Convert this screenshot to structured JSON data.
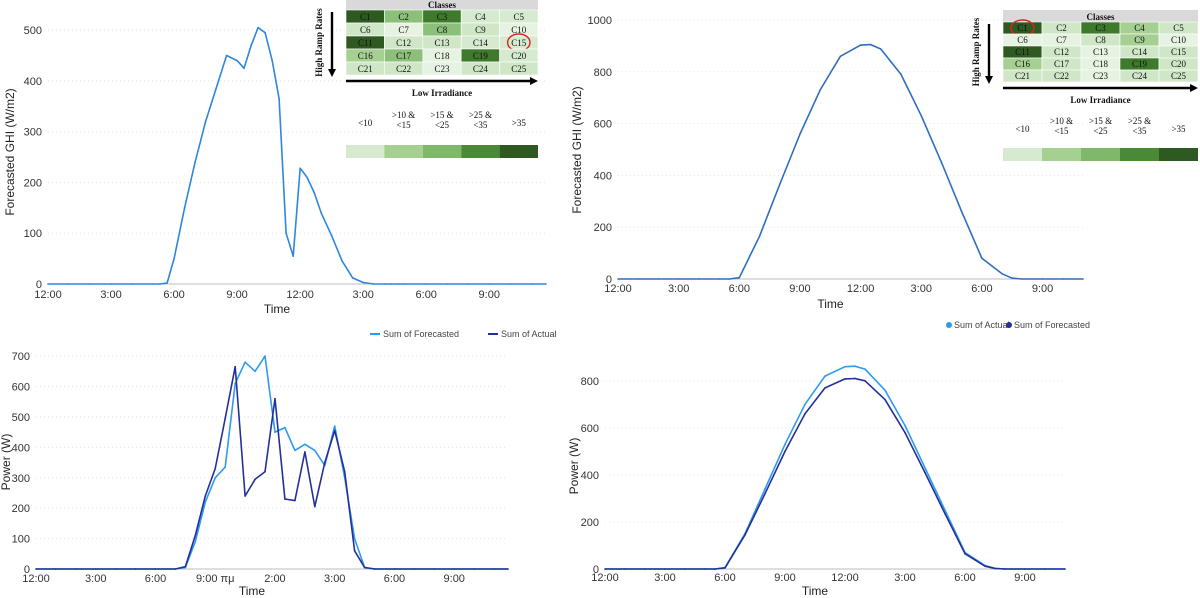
{
  "chart_data": [
    {
      "type": "line",
      "ylabel": "Forecasted GHI (W/m2)",
      "xlabel": "Time",
      "x_ticks": [
        "12:00",
        "3:00",
        "6:00",
        "9:00",
        "12:00",
        "3:00",
        "6:00",
        "9:00"
      ],
      "y_ticks": [
        0,
        100,
        200,
        300,
        400,
        500
      ],
      "ylim": [
        0,
        520
      ],
      "grid": true,
      "series": [
        {
          "color": "#2e86de",
          "x": [
            0,
            1,
            2,
            3,
            4,
            5,
            5.33,
            5.67,
            6,
            6.5,
            7,
            7.5,
            8,
            8.5,
            9,
            9.33,
            9.67,
            10,
            10.33,
            10.67,
            11,
            11.33,
            11.67,
            12,
            12.33,
            12.67,
            13,
            13.5,
            14,
            14.5,
            15,
            15.5,
            16,
            16.33,
            16.67,
            17,
            18,
            19,
            20,
            21,
            22,
            23,
            23.7
          ],
          "values": [
            0,
            0,
            0,
            0,
            0,
            0,
            0,
            2,
            50,
            150,
            240,
            320,
            385,
            450,
            440,
            425,
            470,
            505,
            495,
            440,
            365,
            100,
            55,
            228,
            210,
            180,
            140,
            95,
            45,
            12,
            3,
            0,
            0,
            0,
            0,
            0,
            0,
            0,
            0,
            0,
            0,
            0,
            0
          ]
        }
      ]
    },
    {
      "type": "line",
      "ylabel": "Forecasted GHI (W/m2)",
      "xlabel": "Time",
      "x_ticks": [
        "12:00",
        "3:00",
        "6:00",
        "9:00",
        "12:00",
        "3:00",
        "6:00",
        "9:00"
      ],
      "y_ticks": [
        0,
        200,
        400,
        600,
        800,
        1000
      ],
      "ylim": [
        0,
        1000
      ],
      "grid": true,
      "series": [
        {
          "color": "#2e6fbf",
          "x": [
            0,
            1,
            2,
            3,
            4,
            5,
            5.5,
            6,
            7,
            8,
            9,
            10,
            11,
            12,
            12.5,
            13,
            14,
            15,
            16,
            17,
            18,
            19,
            19.5,
            20,
            21,
            22,
            23
          ],
          "values": [
            0,
            0,
            0,
            0,
            0,
            0,
            0,
            5,
            165,
            365,
            560,
            730,
            860,
            903,
            905,
            888,
            790,
            630,
            450,
            260,
            80,
            20,
            3,
            0,
            0,
            0,
            0
          ]
        }
      ]
    },
    {
      "type": "line",
      "ylabel": "Power (W)",
      "xlabel": "Time",
      "x_ticks": [
        "12:00",
        "3:00",
        "6:00",
        "9:00 πμ",
        "2:00",
        "3:00",
        "6:00",
        "9:00"
      ],
      "y_ticks": [
        0,
        100,
        200,
        300,
        400,
        500,
        600,
        700
      ],
      "ylim": [
        0,
        720
      ],
      "grid": true,
      "legend": "top-right",
      "series": [
        {
          "name": "Sum of Forecasted",
          "color": "#2e9af0",
          "x": [
            0,
            1,
            2,
            3,
            4,
            5,
            6,
            7,
            7.5,
            8,
            8.5,
            9,
            9.5,
            10,
            10.5,
            11,
            11.5,
            12,
            12.5,
            13,
            13.5,
            14,
            14.5,
            15,
            15.5,
            16,
            16.5,
            17,
            18,
            19,
            20,
            21,
            22,
            23,
            23.7
          ],
          "values": [
            0,
            0,
            0,
            0,
            0,
            0,
            0,
            0,
            5,
            90,
            220,
            300,
            335,
            610,
            680,
            650,
            700,
            450,
            465,
            390,
            410,
            390,
            340,
            470,
            300,
            100,
            5,
            0,
            0,
            0,
            0,
            0,
            0,
            0,
            0
          ]
        },
        {
          "name": "Sum of Actual",
          "color": "#24309a",
          "x": [
            0,
            1,
            2,
            3,
            4,
            5,
            6,
            7,
            7.5,
            8,
            8.5,
            9,
            9.5,
            10,
            10.5,
            11,
            11.5,
            12,
            12.5,
            13,
            13.5,
            14,
            14.5,
            15,
            15.5,
            16,
            16.5,
            17,
            18,
            19,
            20,
            21,
            22,
            23,
            23.7
          ],
          "values": [
            0,
            0,
            0,
            0,
            0,
            0,
            0,
            0,
            8,
            110,
            240,
            330,
            495,
            665,
            240,
            295,
            320,
            560,
            230,
            225,
            385,
            205,
            350,
            455,
            320,
            60,
            5,
            0,
            0,
            0,
            0,
            0,
            0,
            0,
            0
          ]
        }
      ]
    },
    {
      "type": "line",
      "ylabel": "Power (W)",
      "xlabel": "Time",
      "x_ticks": [
        "12:00",
        "3:00",
        "6:00",
        "9:00",
        "12:00",
        "3:00",
        "6:00",
        "9:00"
      ],
      "y_ticks": [
        0,
        200,
        400,
        600,
        800
      ],
      "ylim": [
        0,
        880
      ],
      "grid": true,
      "legend": "top-right",
      "series": [
        {
          "name": "Sum of Actual",
          "color": "#2e9af0",
          "x": [
            0,
            1,
            2,
            3,
            4,
            5,
            5.5,
            6,
            7,
            8,
            9,
            10,
            11,
            12,
            12.5,
            13,
            14,
            15,
            16,
            17,
            18,
            19,
            19.5,
            20,
            21,
            22,
            23
          ],
          "values": [
            0,
            0,
            0,
            0,
            0,
            0,
            0,
            5,
            150,
            340,
            530,
            700,
            820,
            860,
            862,
            850,
            760,
            610,
            430,
            250,
            70,
            15,
            3,
            0,
            0,
            0,
            0
          ]
        },
        {
          "name": "Sum of Forecasted",
          "color": "#24309a",
          "x": [
            0,
            1,
            2,
            3,
            4,
            5,
            5.5,
            6,
            7,
            8,
            9,
            10,
            11,
            12,
            12.5,
            13,
            14,
            15,
            16,
            17,
            18,
            19,
            19.5,
            20,
            21,
            22,
            23
          ],
          "values": [
            0,
            0,
            0,
            0,
            0,
            0,
            0,
            5,
            145,
            320,
            500,
            660,
            770,
            808,
            810,
            800,
            720,
            580,
            410,
            235,
            65,
            12,
            2,
            0,
            0,
            0,
            0
          ]
        }
      ]
    }
  ],
  "class_tables": [
    {
      "title": "Classes",
      "vertical_label": "High Ramp Rates",
      "horizontal_label": "Low Irradiance",
      "highlighted": "C15",
      "cells": [
        [
          {
            "t": "C1",
            "c": "#2e5a22"
          },
          {
            "t": "C2",
            "c": "#8cc07a"
          },
          {
            "t": "C3",
            "c": "#3f7a2c"
          },
          {
            "t": "C4",
            "c": "#d6ead0"
          },
          {
            "t": "C5",
            "c": "#d6ead0"
          }
        ],
        [
          {
            "t": "C6",
            "c": "#cfe6c7"
          },
          {
            "t": "C7",
            "c": "#e6f2e2"
          },
          {
            "t": "C8",
            "c": "#8cc07a"
          },
          {
            "t": "C9",
            "c": "#cfe6c7"
          },
          {
            "t": "C10",
            "c": "#e6f2e2"
          }
        ],
        [
          {
            "t": "C11",
            "c": "#2e5a22"
          },
          {
            "t": "C12",
            "c": "#cfe6c7"
          },
          {
            "t": "C13",
            "c": "#cfe6c7"
          },
          {
            "t": "C14",
            "c": "#d6ead0"
          },
          {
            "t": "C15",
            "c": "#d6ead0"
          }
        ],
        [
          {
            "t": "C16",
            "c": "#a6d092"
          },
          {
            "t": "C17",
            "c": "#8cc07a"
          },
          {
            "t": "C18",
            "c": "#e6f2e2"
          },
          {
            "t": "C19",
            "c": "#3f7a2c"
          },
          {
            "t": "C20",
            "c": "#d6ead0"
          }
        ],
        [
          {
            "t": "C21",
            "c": "#cfe6c7"
          },
          {
            "t": "C22",
            "c": "#cfe6c7"
          },
          {
            "t": "C23",
            "c": "#e6f2e2"
          },
          {
            "t": "C24",
            "c": "#cfe6c7"
          },
          {
            "t": "C25",
            "c": "#cfe6c7"
          }
        ]
      ],
      "scale_labels": [
        "<10",
        ">10 &\n<15",
        ">15 &\n<25",
        ">25 &\n<35",
        ">35"
      ],
      "scale_colors": [
        "#d6ead0",
        "#a6d092",
        "#7fb86a",
        "#4a8a35",
        "#2e5a22"
      ]
    },
    {
      "title": "Classes",
      "vertical_label": "High Ramp Rates",
      "horizontal_label": "Low Irradiance",
      "highlighted": "C1",
      "cells": [
        [
          {
            "t": "C1",
            "c": "#2e5a22"
          },
          {
            "t": "C2",
            "c": "#cfe6c7"
          },
          {
            "t": "C3",
            "c": "#3f7a2c"
          },
          {
            "t": "C4",
            "c": "#a6d092"
          },
          {
            "t": "C5",
            "c": "#cfe6c7"
          }
        ],
        [
          {
            "t": "C6",
            "c": "#e6f2e2"
          },
          {
            "t": "C7",
            "c": "#e6f2e2"
          },
          {
            "t": "C8",
            "c": "#cfe6c7"
          },
          {
            "t": "C9",
            "c": "#a6d092"
          },
          {
            "t": "C10",
            "c": "#e6f2e2"
          }
        ],
        [
          {
            "t": "C11",
            "c": "#2e5a22"
          },
          {
            "t": "C12",
            "c": "#cfe6c7"
          },
          {
            "t": "C13",
            "c": "#e6f2e2"
          },
          {
            "t": "C14",
            "c": "#cfe6c7"
          },
          {
            "t": "C15",
            "c": "#cfe6c7"
          }
        ],
        [
          {
            "t": "C16",
            "c": "#a6d092"
          },
          {
            "t": "C17",
            "c": "#cfe6c7"
          },
          {
            "t": "C18",
            "c": "#e6f2e2"
          },
          {
            "t": "C19",
            "c": "#3f7a2c"
          },
          {
            "t": "C20",
            "c": "#cfe6c7"
          }
        ],
        [
          {
            "t": "C21",
            "c": "#cfe6c7"
          },
          {
            "t": "C22",
            "c": "#cfe6c7"
          },
          {
            "t": "C23",
            "c": "#e6f2e2"
          },
          {
            "t": "C24",
            "c": "#cfe6c7"
          },
          {
            "t": "C25",
            "c": "#cfe6c7"
          }
        ]
      ],
      "scale_labels": [
        "<10",
        ">10 &\n<15",
        ">15 &\n<25",
        ">25 &\n<35",
        ">35"
      ],
      "scale_colors": [
        "#d6ead0",
        "#a6d092",
        "#7fb86a",
        "#4a8a35",
        "#2e5a22"
      ]
    }
  ]
}
